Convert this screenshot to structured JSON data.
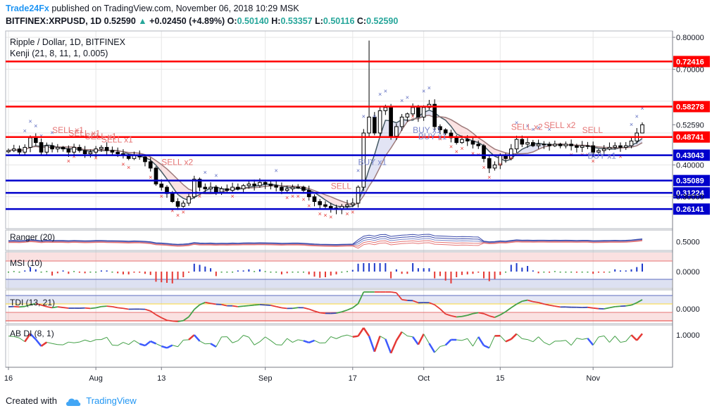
{
  "header": {
    "brand": "Trade24Fx",
    "published_text": "published on TradingView.com, November 06, 2018 10:29 MSK",
    "symbol": "BITFINEX:XRPUSD, 1D",
    "last": "0.52590",
    "change": "+0.02450 (+4.89%)",
    "o_label": "O:",
    "o_value": "0.50140",
    "h_label": "H:",
    "h_value": "0.53357",
    "l_label": "L:",
    "l_value": "0.50116",
    "c_label": "C:",
    "c_value": "0.52590"
  },
  "footer": {
    "created_with": "Created with",
    "tradingview": "TradingView"
  },
  "colors": {
    "up": "#26a69a",
    "red_line": "#ff0000",
    "blue_line": "#0000cc",
    "sell_label": "#e57373",
    "buy_label": "#7986cb",
    "grid": "#e6e6e6"
  },
  "chart_data": [
    {
      "type": "candlestick",
      "title": "Ripple / Dollar, 1D, BITFINEX",
      "indicator": "Kenji (21, 8, 11, 1, 0.005)",
      "ylim": [
        0.2,
        0.82
      ],
      "y_ticks": [
        "0.80000",
        "0.70000",
        "0.52590",
        "0.40000",
        "0.30000"
      ],
      "x_labels": [
        {
          "label": "16",
          "index": 0
        },
        {
          "label": "Aug",
          "index": 16
        },
        {
          "label": "13",
          "index": 28
        },
        {
          "label": "Sep",
          "index": 47
        },
        {
          "label": "17",
          "index": 63
        },
        {
          "label": "Oct",
          "index": 76
        },
        {
          "label": "15",
          "index": 90
        },
        {
          "label": "Nov",
          "index": 107
        }
      ],
      "price_lines": [
        {
          "value": 0.72416,
          "label": "0.72416",
          "color": "red"
        },
        {
          "value": 0.58278,
          "label": "0.58278",
          "color": "red"
        },
        {
          "value": 0.48741,
          "label": "0.48741",
          "color": "red"
        },
        {
          "value": 0.43043,
          "label": "0.43043",
          "color": "blue"
        },
        {
          "value": 0.35089,
          "label": "0.35089",
          "color": "blue"
        },
        {
          "value": 0.31224,
          "label": "0.31224",
          "color": "blue"
        },
        {
          "value": 0.26141,
          "label": "0.26141",
          "color": "blue"
        }
      ],
      "close": [
        0.445,
        0.45,
        0.44,
        0.455,
        0.485,
        0.47,
        0.44,
        0.46,
        0.45,
        0.455,
        0.45,
        0.44,
        0.455,
        0.445,
        0.435,
        0.44,
        0.45,
        0.455,
        0.445,
        0.44,
        0.435,
        0.43,
        0.42,
        0.43,
        0.425,
        0.41,
        0.39,
        0.34,
        0.33,
        0.31,
        0.285,
        0.27,
        0.28,
        0.3,
        0.355,
        0.33,
        0.325,
        0.33,
        0.315,
        0.325,
        0.32,
        0.33,
        0.325,
        0.335,
        0.34,
        0.335,
        0.345,
        0.34,
        0.335,
        0.33,
        0.32,
        0.325,
        0.33,
        0.33,
        0.32,
        0.3,
        0.285,
        0.275,
        0.27,
        0.265,
        0.26,
        0.27,
        0.275,
        0.28,
        0.33,
        0.5,
        0.55,
        0.5,
        0.57,
        0.58,
        0.49,
        0.52,
        0.55,
        0.56,
        0.58,
        0.55,
        0.58,
        0.59,
        0.52,
        0.51,
        0.5,
        0.485,
        0.47,
        0.48,
        0.475,
        0.465,
        0.46,
        0.42,
        0.39,
        0.4,
        0.43,
        0.42,
        0.45,
        0.48,
        0.465,
        0.47,
        0.46,
        0.465,
        0.465,
        0.46,
        0.465,
        0.46,
        0.465,
        0.46,
        0.455,
        0.46,
        0.46,
        0.44,
        0.445,
        0.45,
        0.455,
        0.46,
        0.455,
        0.46,
        0.475,
        0.5,
        0.5259
      ],
      "signal_labels": [
        {
          "text": "SELL x1",
          "index": 8,
          "value": 0.5
        },
        {
          "text": "SELL x1",
          "index": 11,
          "value": 0.49
        },
        {
          "text": "SELL x1",
          "index": 14,
          "value": 0.48
        },
        {
          "text": "SELL x1",
          "index": 17,
          "value": 0.47
        },
        {
          "text": "SELL x2",
          "index": 28,
          "value": 0.4
        },
        {
          "text": "SELL",
          "index": 59,
          "value": 0.325
        },
        {
          "text": "BUY x1",
          "index": 64,
          "value": 0.4
        },
        {
          "text": "BUY x1",
          "index": 74,
          "value": 0.5
        },
        {
          "text": "BUY x1",
          "index": 75,
          "value": 0.48
        },
        {
          "text": "SELL x2",
          "index": 92,
          "value": 0.51
        },
        {
          "text": "SELL x2",
          "index": 98,
          "value": 0.515
        },
        {
          "text": "SELL",
          "index": 105,
          "value": 0.5
        },
        {
          "text": "BUY x1",
          "index": 106,
          "value": 0.42
        }
      ]
    },
    {
      "type": "line",
      "title": "Ranger (20)",
      "y_ticks": [
        "0.5000"
      ]
    },
    {
      "type": "bar",
      "title": "MSI (10)",
      "y_ticks": [
        "0.0000"
      ]
    },
    {
      "type": "line",
      "title": "TDI (13, 21)",
      "y_ticks": [
        "0.0000"
      ]
    },
    {
      "type": "line",
      "title": "AB DI (8, 1)",
      "y_ticks": [
        "1.0000"
      ]
    }
  ]
}
